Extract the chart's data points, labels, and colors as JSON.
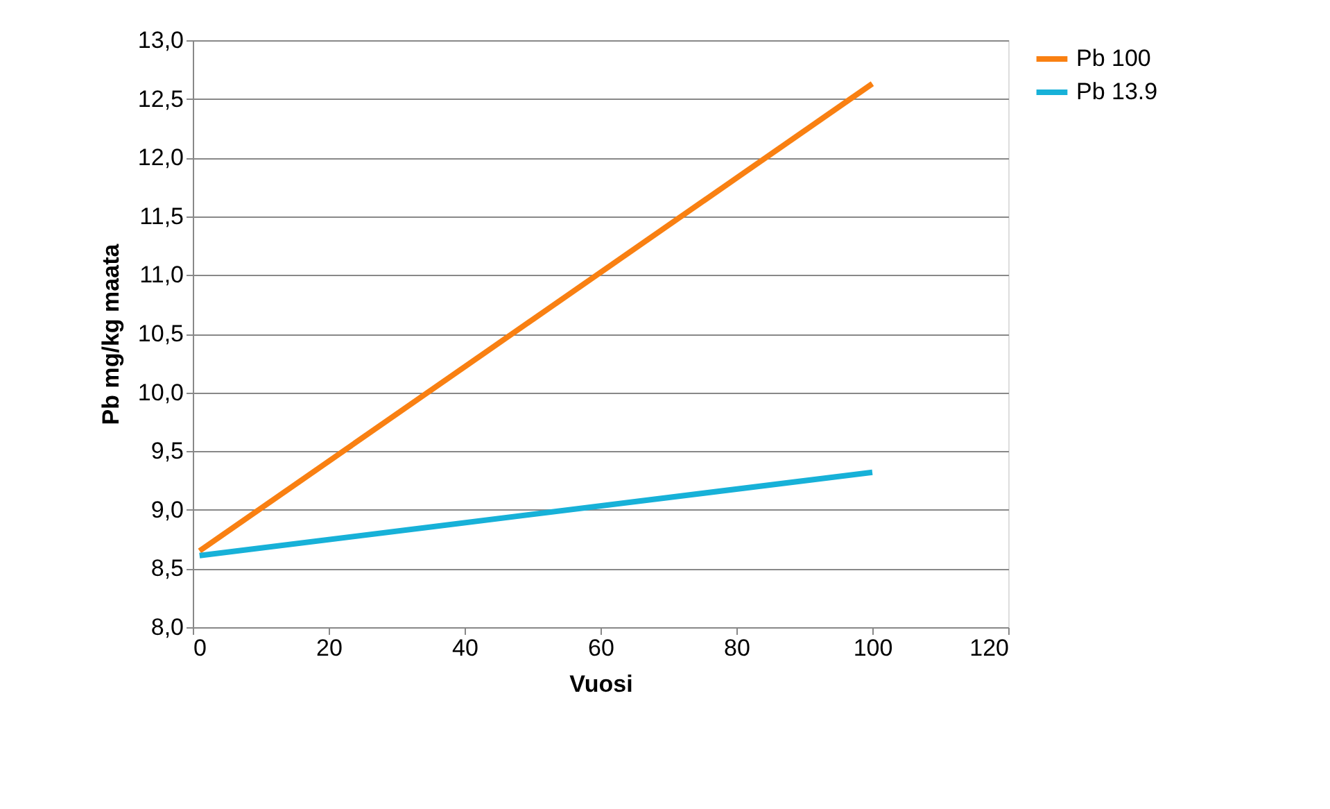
{
  "chart_data": {
    "type": "line",
    "xlabel": "Vuosi",
    "ylabel": "Pb mg/kg maata",
    "x": [
      1,
      100
    ],
    "series": [
      {
        "name": "Pb 100",
        "color": "#f98012",
        "values": [
          8.65,
          12.63
        ]
      },
      {
        "name": "Pb 13.9",
        "color": "#17b1d8",
        "values": [
          8.61,
          9.32
        ]
      }
    ],
    "xlim": [
      0,
      120
    ],
    "xticks": [
      0,
      20,
      40,
      60,
      80,
      100,
      120
    ],
    "ylim": [
      8.0,
      13.0
    ],
    "yticks": [
      {
        "value": 8.0,
        "label": "8,0"
      },
      {
        "value": 8.5,
        "label": "8,5"
      },
      {
        "value": 9.0,
        "label": "9,0"
      },
      {
        "value": 9.5,
        "label": "9,5"
      },
      {
        "value": 10.0,
        "label": "10,0"
      },
      {
        "value": 10.5,
        "label": "10,5"
      },
      {
        "value": 11.0,
        "label": "11,0"
      },
      {
        "value": 11.5,
        "label": "11,5"
      },
      {
        "value": 12.0,
        "label": "12,0"
      },
      {
        "value": 12.5,
        "label": "12,5"
      },
      {
        "value": 13.0,
        "label": "13,0"
      }
    ],
    "grid": "y",
    "legend": "right",
    "marker": "none",
    "line_style": "solid"
  }
}
